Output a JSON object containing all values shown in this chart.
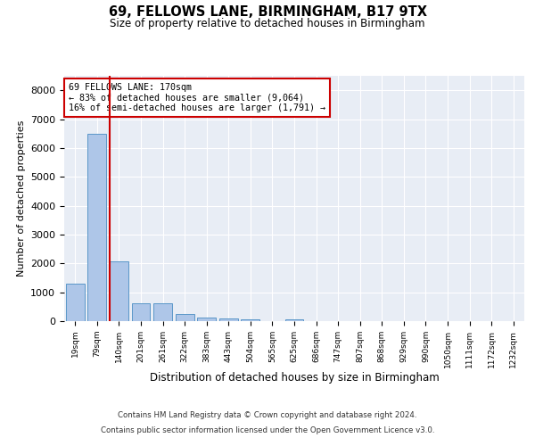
{
  "title1": "69, FELLOWS LANE, BIRMINGHAM, B17 9TX",
  "title2": "Size of property relative to detached houses in Birmingham",
  "xlabel": "Distribution of detached houses by size in Birmingham",
  "ylabel": "Number of detached properties",
  "bar_color": "#aec6e8",
  "bar_edge_color": "#5a96c8",
  "background_color": "#e8edf5",
  "grid_color": "#ffffff",
  "annotation_box_color": "#cc0000",
  "vline_color": "#cc0000",
  "categories": [
    "19sqm",
    "79sqm",
    "140sqm",
    "201sqm",
    "261sqm",
    "322sqm",
    "383sqm",
    "443sqm",
    "504sqm",
    "565sqm",
    "625sqm",
    "686sqm",
    "747sqm",
    "807sqm",
    "868sqm",
    "929sqm",
    "990sqm",
    "1050sqm",
    "1111sqm",
    "1172sqm",
    "1232sqm"
  ],
  "values": [
    1300,
    6500,
    2080,
    620,
    620,
    240,
    130,
    90,
    60,
    0,
    60,
    0,
    0,
    0,
    0,
    0,
    0,
    0,
    0,
    0,
    0
  ],
  "property_label": "69 FELLOWS LANE: 170sqm",
  "pct_smaller": 83,
  "n_smaller": 9064,
  "pct_larger_semi": 16,
  "n_larger_semi": 1791,
  "ylim": [
    0,
    8500
  ],
  "yticks": [
    0,
    1000,
    2000,
    3000,
    4000,
    5000,
    6000,
    7000,
    8000
  ],
  "footer1": "Contains HM Land Registry data © Crown copyright and database right 2024.",
  "footer2": "Contains public sector information licensed under the Open Government Licence v3.0."
}
